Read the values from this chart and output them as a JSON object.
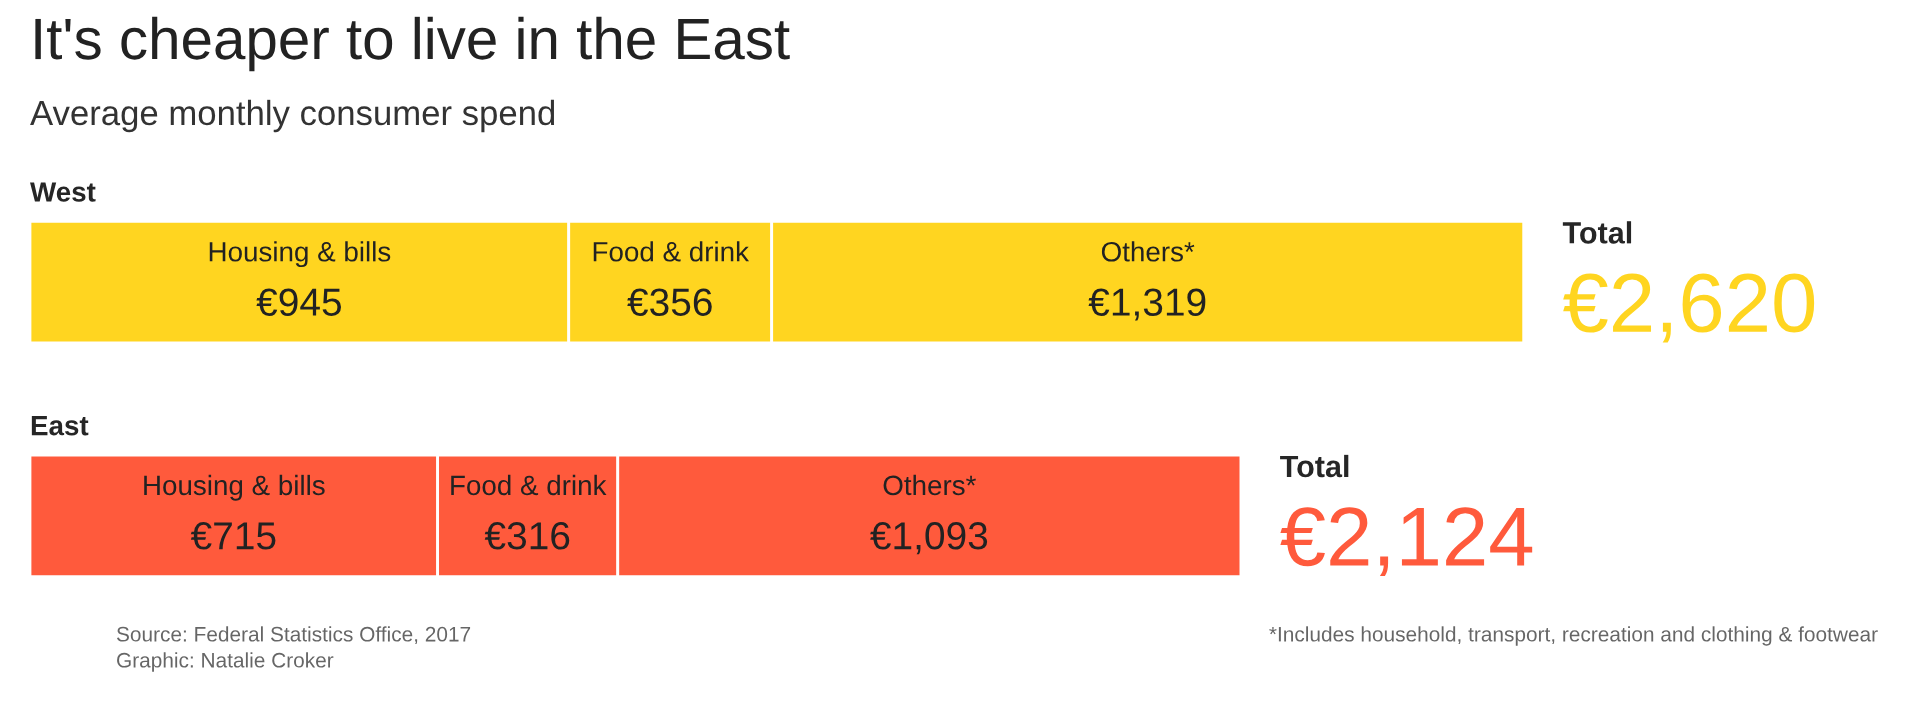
{
  "chart_data": {
    "type": "bar",
    "orientation": "horizontal",
    "stacked": true,
    "title": "It's cheaper to live in the East",
    "subtitle": "Average monthly consumer spend",
    "categories": [
      "West",
      "East"
    ],
    "series": [
      {
        "name": "Housing & bills",
        "values": [
          945,
          715
        ],
        "colors": [
          "#ffd520",
          "#ff5a3c"
        ],
        "value_labels": [
          "€945",
          "€715"
        ]
      },
      {
        "name": "Food & drink",
        "values": [
          356,
          316
        ],
        "colors": [
          "#ffd520",
          "#ff5a3c"
        ],
        "value_labels": [
          "€356",
          "€316"
        ]
      },
      {
        "name": "Others*",
        "values": [
          1319,
          1093
        ],
        "colors": [
          "#ffd520",
          "#ff5a3c"
        ],
        "value_labels": [
          "€1,319",
          "€1,093"
        ]
      }
    ],
    "totals": [
      "€2,620",
      "€2,124"
    ],
    "annotations": [
      {
        "text": "Total",
        "x": 2620,
        "y": "West"
      },
      {
        "text": "Total",
        "x": 2124,
        "y": "East"
      },
      "Source: Federal Statistics Office, 2017",
      "Graphic: Natalie Croker",
      "*Includes household, transport, recreation and clothing & footwear"
    ],
    "legend": false,
    "tick_labels": false
  }
}
